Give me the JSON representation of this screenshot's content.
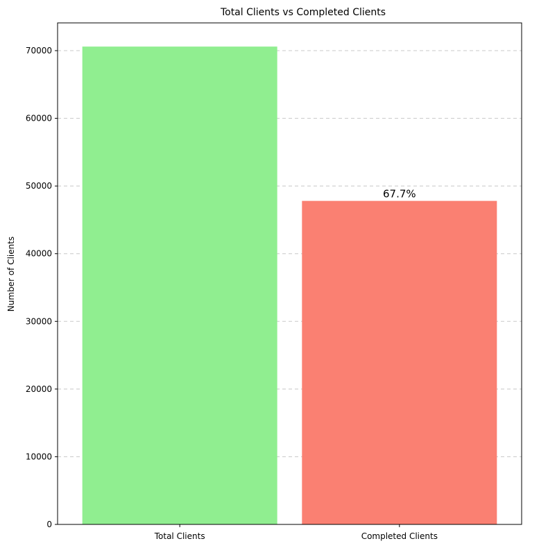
{
  "chart_data": {
    "type": "bar",
    "title": "Total Clients vs Completed Clients",
    "xlabel": "",
    "ylabel": "Number of Clients",
    "categories": [
      "Total Clients",
      "Completed Clients"
    ],
    "values": [
      70600,
      47800
    ],
    "colors": [
      "#90ee90",
      "#fa8072"
    ],
    "data_labels": [
      "",
      "67.7%"
    ],
    "ylim": [
      0,
      74100
    ],
    "yticks": [
      0,
      10000,
      20000,
      30000,
      40000,
      50000,
      60000,
      70000
    ],
    "grid": "y",
    "grid_style": "dashed",
    "legend": "none"
  }
}
